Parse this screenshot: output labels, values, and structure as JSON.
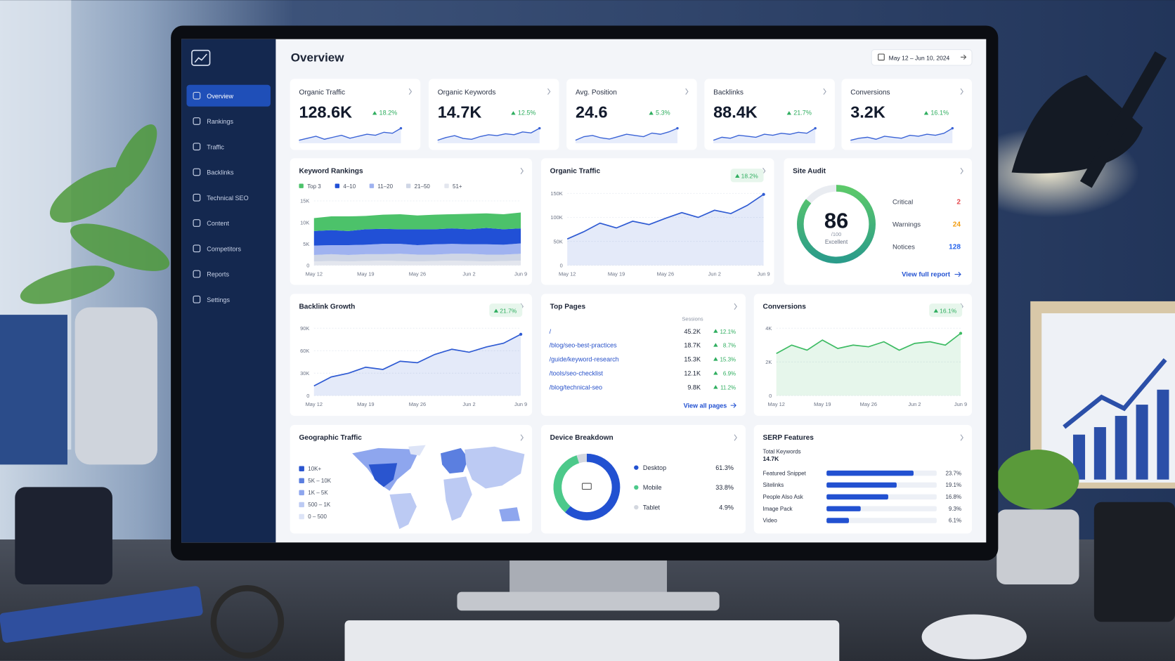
{
  "header": {
    "title": "Overview",
    "date_range": "May 12 – Jun 10, 2024"
  },
  "sidebar": {
    "items": [
      "Overview",
      "Rankings",
      "Traffic",
      "Backlinks",
      "Technical SEO",
      "Content",
      "Competitors",
      "Reports",
      "Settings"
    ]
  },
  "kpis": [
    {
      "label": "Organic Traffic",
      "value": "128.6K",
      "change": "18.2%",
      "trend": [
        30,
        32,
        34,
        31,
        33,
        35,
        32,
        34,
        36,
        35,
        38,
        37,
        42
      ]
    },
    {
      "label": "Organic Keywords",
      "value": "14.7K",
      "change": "12.5%",
      "trend": [
        28,
        31,
        33,
        30,
        29,
        32,
        34,
        33,
        35,
        34,
        37,
        36,
        41
      ]
    },
    {
      "label": "Avg. Position",
      "value": "24.6",
      "change": "5.3%",
      "trend": [
        30,
        33,
        34,
        32,
        31,
        33,
        35,
        34,
        33,
        36,
        35,
        37,
        40
      ]
    },
    {
      "label": "Backlinks",
      "value": "88.4K",
      "change": "21.7%",
      "trend": [
        29,
        32,
        31,
        34,
        33,
        32,
        35,
        34,
        36,
        35,
        37,
        36,
        41
      ]
    },
    {
      "label": "Conversions",
      "value": "3.2K",
      "change": "16.1%",
      "trend": [
        30,
        32,
        33,
        31,
        34,
        33,
        32,
        35,
        34,
        36,
        35,
        37,
        42
      ]
    }
  ],
  "keyword_rankings": {
    "type": "stacked-area",
    "title": "Keyword Rankings",
    "categories": [
      "May 12",
      null,
      null,
      "May 19",
      null,
      null,
      "May 26",
      null,
      null,
      "Jun 2",
      null,
      null,
      "Jun 9"
    ],
    "ylim": [
      0,
      15000
    ],
    "yticks": [
      0,
      {
        "value": 5000,
        "label": "5K"
      },
      {
        "value": 10000,
        "label": "10K"
      },
      {
        "value": 15000,
        "label": "15K"
      }
    ],
    "series": [
      {
        "name": "Top 3",
        "color": "#4cc26a",
        "values": [
          3000,
          3200,
          3400,
          3100,
          3300,
          3500,
          3200,
          3400,
          3300,
          3600,
          3400,
          3500,
          3700
        ]
      },
      {
        "name": "4–10",
        "color": "#2150d6",
        "values": [
          3400,
          3500,
          3300,
          3600,
          3500,
          3400,
          3700,
          3500,
          3600,
          3500,
          3800,
          3600,
          3500
        ]
      },
      {
        "name": "11–20",
        "color": "#9fb2f0",
        "values": [
          2200,
          2100,
          2300,
          2200,
          2400,
          2300,
          2200,
          2400,
          2300,
          2200,
          2400,
          2300,
          2400
        ]
      },
      {
        "name": "21–50",
        "color": "#cfd6e6",
        "values": [
          1500,
          1600,
          1500,
          1600,
          1500,
          1700,
          1600,
          1500,
          1600,
          1700,
          1600,
          1500,
          1600
        ]
      },
      {
        "name": "51+",
        "color": "#e3e6ee",
        "values": [
          900,
          1000,
          900,
          1000,
          1100,
          1000,
          900,
          1000,
          1100,
          1000,
          900,
          1000,
          1100
        ]
      }
    ]
  },
  "organic_traffic": {
    "type": "area",
    "title": "Organic Traffic",
    "change": "18.2%",
    "color": "#2f5bd3",
    "categories": [
      "May 12",
      null,
      null,
      "May 19",
      null,
      null,
      "May 26",
      null,
      null,
      "Jun 2",
      null,
      null,
      "Jun 9"
    ],
    "values": [
      55000,
      70000,
      88000,
      78000,
      92000,
      85000,
      98000,
      110000,
      100000,
      115000,
      108000,
      125000,
      148000
    ],
    "ylim": [
      0,
      150000
    ],
    "yticks": [
      0,
      {
        "value": 50000,
        "label": "50K"
      },
      {
        "value": 100000,
        "label": "100K"
      },
      {
        "value": 150000,
        "label": "150K"
      }
    ]
  },
  "site_audit": {
    "title": "Site Audit",
    "score": 86,
    "score_max": "/100",
    "rating": "Excellent",
    "issues": [
      {
        "label": "Critical",
        "count": 2,
        "color": "#e5484d"
      },
      {
        "label": "Warnings",
        "count": 24,
        "color": "#f29d12"
      },
      {
        "label": "Notices",
        "count": 128,
        "color": "#2563eb"
      }
    ],
    "link": "View full report"
  },
  "backlink_growth": {
    "type": "area",
    "title": "Backlink Growth",
    "change": "21.7%",
    "color": "#2f5bd3",
    "categories": [
      "May 12",
      null,
      null,
      "May 19",
      null,
      null,
      "May 26",
      null,
      null,
      "Jun 2",
      null,
      null,
      "Jun 9"
    ],
    "values": [
      13000,
      25000,
      30000,
      38000,
      35000,
      46000,
      44000,
      55000,
      62000,
      58000,
      65000,
      70000,
      82000
    ],
    "ylim": [
      0,
      90000
    ],
    "yticks": [
      0,
      {
        "value": 30000,
        "label": "30K"
      },
      {
        "value": 60000,
        "label": "60K"
      },
      {
        "value": 90000,
        "label": "90K"
      }
    ]
  },
  "top_pages": {
    "title": "Top Pages",
    "column": "Sessions",
    "rows": [
      [
        "/",
        "45.2K",
        "12.1%"
      ],
      [
        "/blog/seo-best-practices",
        "18.7K",
        "8.7%"
      ],
      [
        "/guide/keyword-research",
        "15.3K",
        "15.3%"
      ],
      [
        "/tools/seo-checklist",
        "12.1K",
        "6.9%"
      ],
      [
        "/blog/technical-seo",
        "9.8K",
        "11.2%"
      ]
    ],
    "link": "View all pages"
  },
  "conversions": {
    "type": "area",
    "title": "Conversions",
    "change": "16.1%",
    "color": "#3dbb63",
    "categories": [
      "May 12",
      null,
      null,
      "May 19",
      null,
      null,
      "May 26",
      null,
      null,
      "Jun 2",
      null,
      null,
      "Jun 9"
    ],
    "values": [
      2500,
      3000,
      2700,
      3300,
      2800,
      3000,
      2900,
      3200,
      2700,
      3100,
      3200,
      3000,
      3700
    ],
    "ylim": [
      0,
      4000
    ],
    "yticks": [
      0,
      {
        "value": 2000,
        "label": "2K"
      },
      {
        "value": 4000,
        "label": "4K"
      }
    ]
  },
  "geographic_traffic": {
    "title": "Geographic Traffic",
    "legend": [
      {
        "label": "10K+",
        "color": "#2a55cf"
      },
      {
        "label": "5K – 10K",
        "color": "#5b7fe0"
      },
      {
        "label": "1K – 5K",
        "color": "#8ea6ee"
      },
      {
        "label": "500 – 1K",
        "color": "#bccaf3"
      },
      {
        "label": "0 – 500",
        "color": "#dde4f7"
      }
    ]
  },
  "device_breakdown": {
    "type": "donut",
    "title": "Device Breakdown",
    "categories": [
      "Desktop",
      "Mobile",
      "Tablet"
    ],
    "values": [
      61.3,
      33.8,
      4.9
    ],
    "value_labels": [
      "61.3%",
      "33.8%",
      "4.9%"
    ],
    "colors": [
      "#2251d1",
      "#4cc98a",
      "#d3d7df"
    ]
  },
  "serp_features": {
    "type": "hbar",
    "title": "SERP Features",
    "total_label": "Total Keywords",
    "total": "14.7K",
    "categories": [
      "Featured Snippet",
      "Sitelinks",
      "People Also Ask",
      "Image Pack",
      "Video"
    ],
    "values": [
      23.7,
      19.1,
      16.8,
      9.3,
      6.1
    ],
    "value_labels": [
      "23.7%",
      "19.1%",
      "16.8%",
      "9.3%",
      "6.1%"
    ],
    "xlim": [
      0,
      30
    ],
    "color": "#2251d1"
  }
}
